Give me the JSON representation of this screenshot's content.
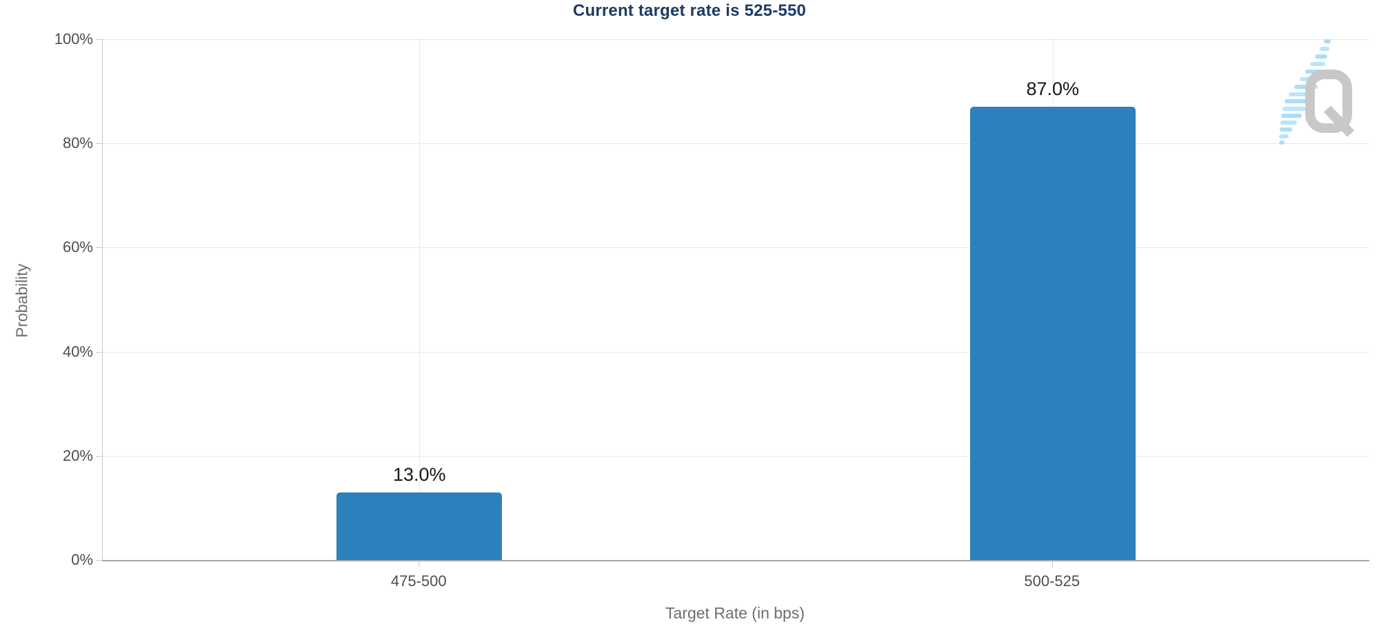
{
  "chart_data": {
    "type": "bar",
    "title": "Current target rate is 525-550",
    "categories": [
      "475-500",
      "500-525"
    ],
    "values": [
      13.0,
      87.0
    ],
    "value_labels": [
      "13.0%",
      "87.0%"
    ],
    "xlabel": "Target Rate (in bps)",
    "ylabel": "Probability",
    "ylim": [
      0,
      100
    ],
    "yticks": [
      {
        "value": 0,
        "label": "0%"
      },
      {
        "value": 20,
        "label": "20%"
      },
      {
        "value": 40,
        "label": "40%"
      },
      {
        "value": 60,
        "label": "60%"
      },
      {
        "value": 80,
        "label": "80%"
      },
      {
        "value": 100,
        "label": "100%"
      }
    ],
    "grid": true,
    "legend": "none",
    "colors": {
      "bar": "#2c80bb",
      "title": "#1e3a66",
      "tick_text": "#4d4d4d",
      "axis_title_text": "#6e6e6e",
      "value_text": "#161616",
      "gridline": "#e7e7e7",
      "baseline": "#a6a6a6"
    }
  },
  "icons": {
    "watermark": "quikstrike-q-logo",
    "watermark_letter_color": "#c8c8c8",
    "watermark_dash_color": "#a4dcf7"
  }
}
